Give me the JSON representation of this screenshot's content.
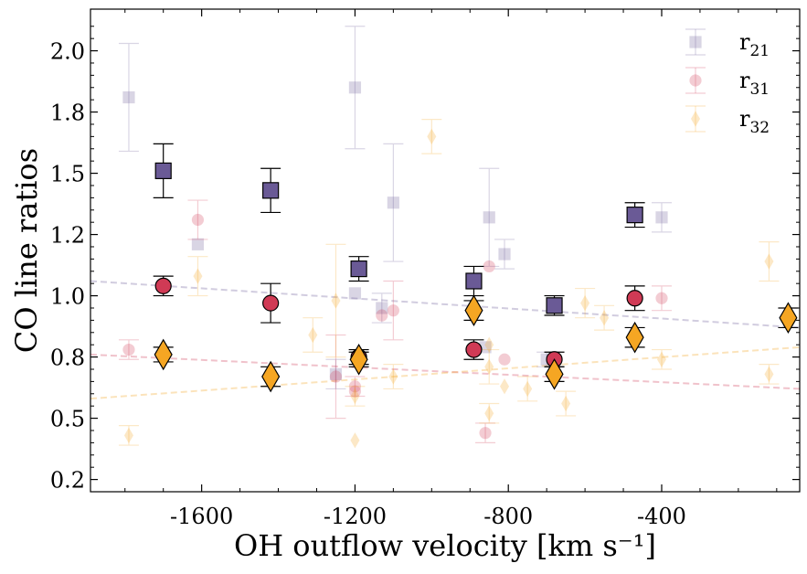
{
  "chart_data": {
    "type": "scatter",
    "xlabel": "OH outflow velocity [km s⁻¹]",
    "ylabel": "CO line ratios",
    "xlim": [
      -1890,
      -40
    ],
    "ylim": [
      0.2,
      2.17
    ],
    "xticks": [
      -1600,
      -1200,
      -800,
      -400
    ],
    "xtick_labels": [
      "-1600",
      "-1200",
      "-800",
      "-400"
    ],
    "yticks": [
      0.25,
      0.5,
      0.75,
      1.0,
      1.25,
      1.5,
      1.75,
      2.0
    ],
    "ytick_labels": [
      "0.2",
      "0.5",
      "0.8",
      "1.0",
      "1.2",
      "1.5",
      "1.8",
      "2.0"
    ],
    "legend_position": "top-right",
    "series": [
      {
        "name": "r21",
        "label_main": "r",
        "label_sub": "21",
        "marker": "square",
        "color": "#6a5a96",
        "background_points": [
          {
            "x": -1790,
            "y": 1.81,
            "err": 0.22
          },
          {
            "x": -1610,
            "y": 1.21,
            "err": 0.0
          },
          {
            "x": -1200,
            "y": 1.85,
            "err": 0.25
          },
          {
            "x": -1200,
            "y": 1.01,
            "err": 0.0
          },
          {
            "x": -1130,
            "y": 0.95,
            "err": 0.06
          },
          {
            "x": -1100,
            "y": 1.38,
            "err": 0.24
          },
          {
            "x": -1250,
            "y": 0.68,
            "err": 0.06
          },
          {
            "x": -850,
            "y": 1.32,
            "err": 0.2
          },
          {
            "x": -810,
            "y": 1.17,
            "err": 0.06
          },
          {
            "x": -860,
            "y": 0.79,
            "err": 0.0
          },
          {
            "x": -700,
            "y": 0.74,
            "err": 0.03
          },
          {
            "x": -400,
            "y": 1.32,
            "err": 0.06
          }
        ],
        "highlight_points": [
          {
            "x": -1700,
            "y": 1.51,
            "err": 0.11
          },
          {
            "x": -1420,
            "y": 1.43,
            "err": 0.09
          },
          {
            "x": -1190,
            "y": 1.11,
            "err": 0.05
          },
          {
            "x": -890,
            "y": 1.06,
            "err": 0.06
          },
          {
            "x": -680,
            "y": 0.96,
            "err": 0.04
          },
          {
            "x": -470,
            "y": 1.33,
            "err": 0.05
          }
        ],
        "trend": {
          "y_at_xmin": 1.06,
          "y_at_xmax": 0.87
        }
      },
      {
        "name": "r31",
        "label_main": "r",
        "label_sub": "31",
        "marker": "circle",
        "color": "#d03a55",
        "background_points": [
          {
            "x": -1790,
            "y": 0.78,
            "err": 0.04
          },
          {
            "x": -1610,
            "y": 1.31,
            "err": 0.08
          },
          {
            "x": -1250,
            "y": 0.67,
            "err": 0.17
          },
          {
            "x": -1200,
            "y": 0.63,
            "err": 0.04
          },
          {
            "x": -1200,
            "y": 0.61,
            "err": 0.0
          },
          {
            "x": -1130,
            "y": 0.92,
            "err": 0.0
          },
          {
            "x": -1100,
            "y": 0.94,
            "err": 0.12
          },
          {
            "x": -850,
            "y": 1.12,
            "err": 0.0
          },
          {
            "x": -810,
            "y": 0.74,
            "err": 0.0
          },
          {
            "x": -860,
            "y": 0.44,
            "err": 0.04
          },
          {
            "x": -400,
            "y": 0.99,
            "err": 0.05
          }
        ],
        "highlight_points": [
          {
            "x": -1700,
            "y": 1.04,
            "err": 0.04
          },
          {
            "x": -1420,
            "y": 0.97,
            "err": 0.08
          },
          {
            "x": -1190,
            "y": 0.75,
            "err": 0.03
          },
          {
            "x": -890,
            "y": 0.78,
            "err": 0.04
          },
          {
            "x": -680,
            "y": 0.74,
            "err": 0.03
          },
          {
            "x": -470,
            "y": 0.99,
            "err": 0.05
          }
        ],
        "trend": {
          "y_at_xmin": 0.76,
          "y_at_xmax": 0.62
        }
      },
      {
        "name": "r32",
        "label_main": "r",
        "label_sub": "32",
        "marker": "diamond",
        "color": "#f5a623",
        "background_points": [
          {
            "x": -1790,
            "y": 0.43,
            "err": 0.04
          },
          {
            "x": -1610,
            "y": 1.08,
            "err": 0.08
          },
          {
            "x": -1310,
            "y": 0.84,
            "err": 0.07
          },
          {
            "x": -1250,
            "y": 0.98,
            "err": 0.23
          },
          {
            "x": -1200,
            "y": 0.59,
            "err": 0.04
          },
          {
            "x": -1200,
            "y": 0.41,
            "err": 0.0
          },
          {
            "x": -1100,
            "y": 0.67,
            "err": 0.05
          },
          {
            "x": -1000,
            "y": 1.65,
            "err": 0.07
          },
          {
            "x": -850,
            "y": 0.52,
            "err": 0.04
          },
          {
            "x": -850,
            "y": 0.71,
            "err": 0.07
          },
          {
            "x": -850,
            "y": 0.8,
            "err": 0.0
          },
          {
            "x": -810,
            "y": 0.63,
            "err": 0.0
          },
          {
            "x": -750,
            "y": 0.62,
            "err": 0.05
          },
          {
            "x": -650,
            "y": 0.56,
            "err": 0.05
          },
          {
            "x": -600,
            "y": 0.97,
            "err": 0.06
          },
          {
            "x": -550,
            "y": 0.91,
            "err": 0.05
          },
          {
            "x": -400,
            "y": 0.74,
            "err": 0.04
          },
          {
            "x": -120,
            "y": 1.14,
            "err": 0.08
          },
          {
            "x": -120,
            "y": 0.68,
            "err": 0.04
          }
        ],
        "highlight_points": [
          {
            "x": -1700,
            "y": 0.76,
            "err": 0.03
          },
          {
            "x": -1420,
            "y": 0.67,
            "err": 0.04
          },
          {
            "x": -1190,
            "y": 0.74,
            "err": 0.03
          },
          {
            "x": -890,
            "y": 0.94,
            "err": 0.04
          },
          {
            "x": -680,
            "y": 0.68,
            "err": 0.03
          },
          {
            "x": -470,
            "y": 0.83,
            "err": 0.04
          },
          {
            "x": -70,
            "y": 0.91,
            "err": 0.04
          }
        ],
        "trend": {
          "y_at_xmin": 0.58,
          "y_at_xmax": 0.79
        }
      }
    ]
  }
}
